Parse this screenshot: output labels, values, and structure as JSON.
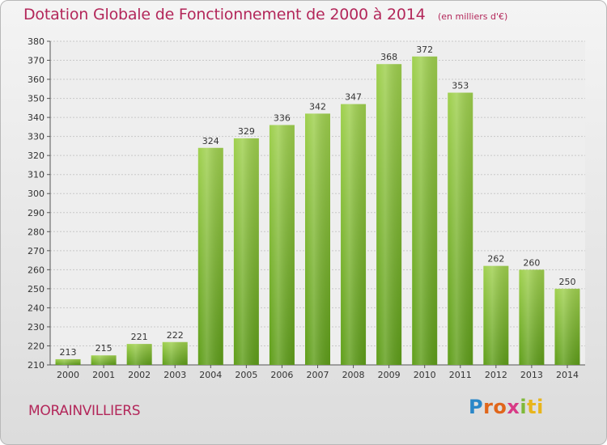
{
  "title": "Dotation Globale de Fonctionnement de 2000 à 2014",
  "subtitle": "(en milliers d'€)",
  "commune": "MORAINVILLIERS",
  "logo": {
    "parts": [
      "P",
      "ro",
      "x",
      "i",
      "ti"
    ],
    "colors": [
      "#2a87c8",
      "#e0661b",
      "#d83a86",
      "#7fb93a",
      "#e8b51c"
    ]
  },
  "colors": {
    "bar_top": "#9fd04e",
    "bar_bottom": "#5f9e1a",
    "title": "#b3275a",
    "grid": "#c8c8c8"
  },
  "chart_data": {
    "type": "bar",
    "categories": [
      "2000",
      "2001",
      "2002",
      "2003",
      "2004",
      "2005",
      "2006",
      "2007",
      "2008",
      "2009",
      "2010",
      "2011",
      "2012",
      "2013",
      "2014"
    ],
    "values": [
      213,
      215,
      221,
      222,
      324,
      329,
      336,
      342,
      347,
      368,
      372,
      353,
      262,
      260,
      250
    ],
    "ylim": [
      210,
      380
    ],
    "yticks": [
      210,
      220,
      230,
      240,
      250,
      260,
      270,
      280,
      290,
      300,
      310,
      320,
      330,
      340,
      350,
      360,
      370,
      380
    ],
    "grid": true,
    "xlabel": "",
    "ylabel": ""
  }
}
